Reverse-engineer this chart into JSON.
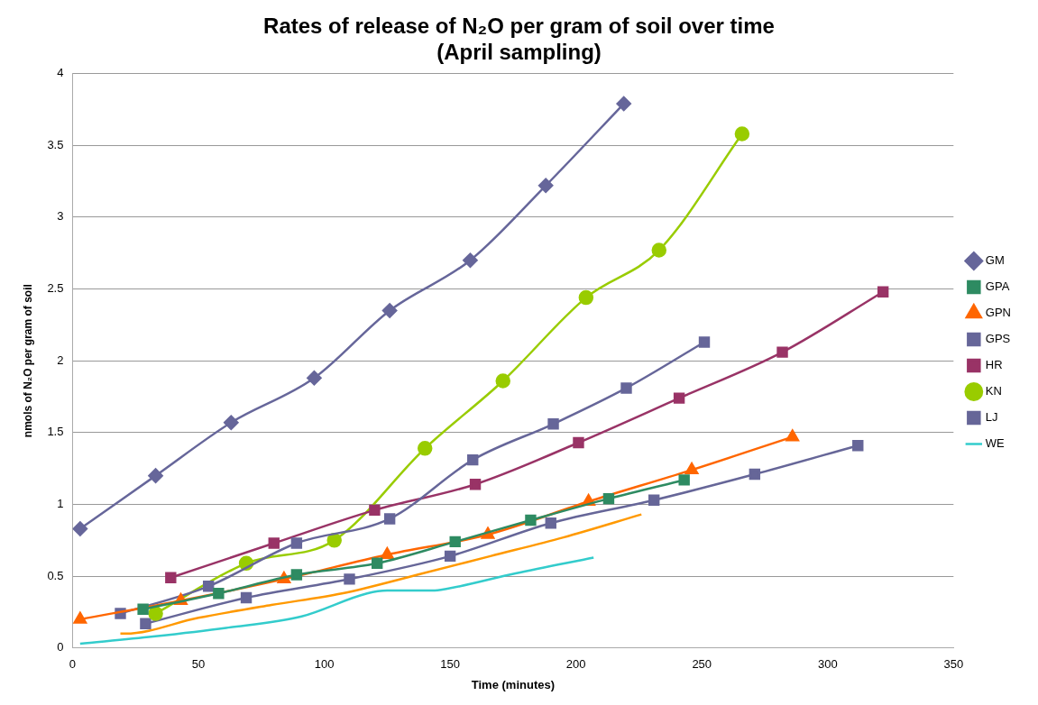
{
  "chart_data": {
    "type": "line",
    "title": "Rates of release of N₂O per gram of soil over time",
    "subtitle": "(April sampling)",
    "xlabel": "Time (minutes)",
    "ylabel": "nmols of N₂O per gram of soil",
    "xlim": [
      0,
      350
    ],
    "xticks": [
      0,
      50,
      100,
      150,
      200,
      250,
      300,
      350
    ],
    "ylim": [
      0,
      4
    ],
    "yticks": [
      0,
      0.5,
      1,
      1.5,
      2,
      2.5,
      3,
      3.5,
      4
    ],
    "grid": "y",
    "legend": "right",
    "line_style": "solid",
    "series": [
      {
        "name": "GM",
        "color": "#66669a",
        "marker": "diamond",
        "x": [
          3,
          33,
          63,
          96,
          126,
          158,
          188,
          219
        ],
        "values": [
          0.83,
          1.2,
          1.57,
          1.88,
          2.35,
          2.7,
          3.22,
          3.79
        ]
      },
      {
        "name": "GPA",
        "color": "#2e8b62",
        "marker": "square",
        "x": [
          28,
          58,
          89,
          121,
          152,
          182,
          213,
          243
        ],
        "values": [
          0.27,
          0.38,
          0.51,
          0.59,
          0.74,
          0.89,
          1.04,
          1.17
        ]
      },
      {
        "name": "GPN",
        "color": "#ff6600",
        "marker": "triangle",
        "x": [
          3,
          43,
          84,
          125,
          165,
          205,
          246,
          286
        ],
        "values": [
          0.2,
          0.33,
          0.48,
          0.65,
          0.79,
          1.02,
          1.24,
          1.47
        ]
      },
      {
        "name": "GPS",
        "color": "#666699",
        "marker": "square",
        "x": [
          19,
          54,
          89,
          126,
          159,
          191,
          220,
          251
        ],
        "values": [
          0.24,
          0.43,
          0.73,
          0.9,
          1.31,
          1.56,
          1.81,
          2.13
        ]
      },
      {
        "name": "HR",
        "color": "#993366",
        "marker": "square",
        "x": [
          39,
          80,
          120,
          160,
          201,
          241,
          282,
          322
        ],
        "values": [
          0.49,
          0.73,
          0.96,
          1.14,
          1.43,
          1.74,
          2.06,
          2.48
        ]
      },
      {
        "name": "KN",
        "color": "#99cc00",
        "marker": "circle",
        "x": [
          33,
          69,
          104,
          140,
          171,
          204,
          233,
          266
        ],
        "values": [
          0.24,
          0.59,
          0.75,
          1.39,
          1.86,
          2.44,
          2.77,
          3.58
        ]
      },
      {
        "name": "LJ",
        "color": "#666698",
        "marker": "square",
        "x": [
          29,
          69,
          110,
          150,
          190,
          231,
          271,
          312
        ],
        "values": [
          0.17,
          0.35,
          0.48,
          0.64,
          0.87,
          1.03,
          1.21,
          1.41
        ]
      },
      {
        "name": "WE",
        "color": "#33cccc",
        "marker": "none",
        "x": [
          3,
          32,
          61,
          91,
          117,
          125,
          143,
          148,
          176,
          207
        ],
        "values": [
          0.03,
          0.08,
          0.14,
          0.22,
          0.38,
          0.4,
          0.4,
          0.41,
          0.52,
          0.63
        ]
      },
      {
        "color": "#ff9900",
        "marker": "none",
        "x": [
          19,
          21,
          50,
          79,
          107,
          137,
          166,
          195,
          226
        ],
        "values": [
          0.1,
          0.1,
          0.21,
          0.3,
          0.38,
          0.51,
          0.64,
          0.77,
          0.93
        ]
      }
    ]
  }
}
